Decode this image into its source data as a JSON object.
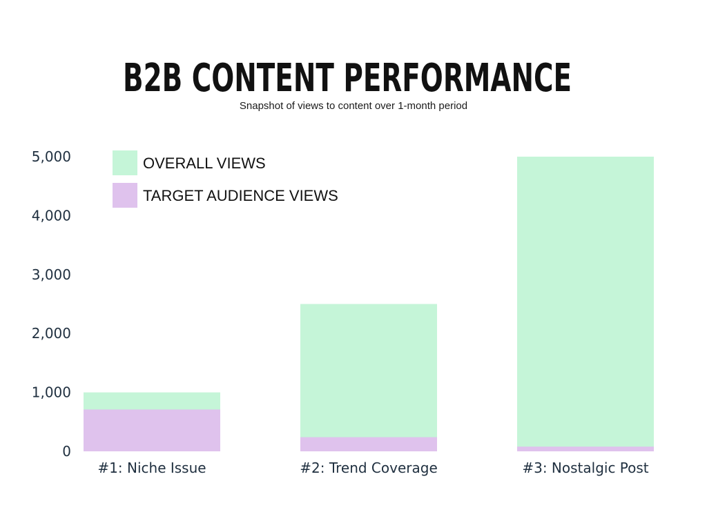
{
  "chart_data": {
    "type": "bar",
    "title": "B2B CONTENT PERFORMANCE",
    "subtitle": "Snapshot of views to content over 1-month period",
    "categories": [
      "#1: Niche Issue",
      "#2: Trend Coverage",
      "#3: Nostalgic Post"
    ],
    "series": [
      {
        "name": "OVERALL VIEWS",
        "values": [
          1000,
          2500,
          5000
        ],
        "color": "#c5f5d8"
      },
      {
        "name": "TARGET AUDIENCE VIEWS",
        "values": [
          710,
          240,
          80
        ],
        "color": "#dfc2ed"
      }
    ],
    "y_ticks": [
      "0",
      "1,000",
      "2,000",
      "3,000",
      "4,000",
      "5,000"
    ],
    "ylim": [
      0,
      5000
    ],
    "xlabel": "",
    "ylabel": "",
    "grid": false,
    "legend_position": "top-left",
    "overlay": true
  }
}
